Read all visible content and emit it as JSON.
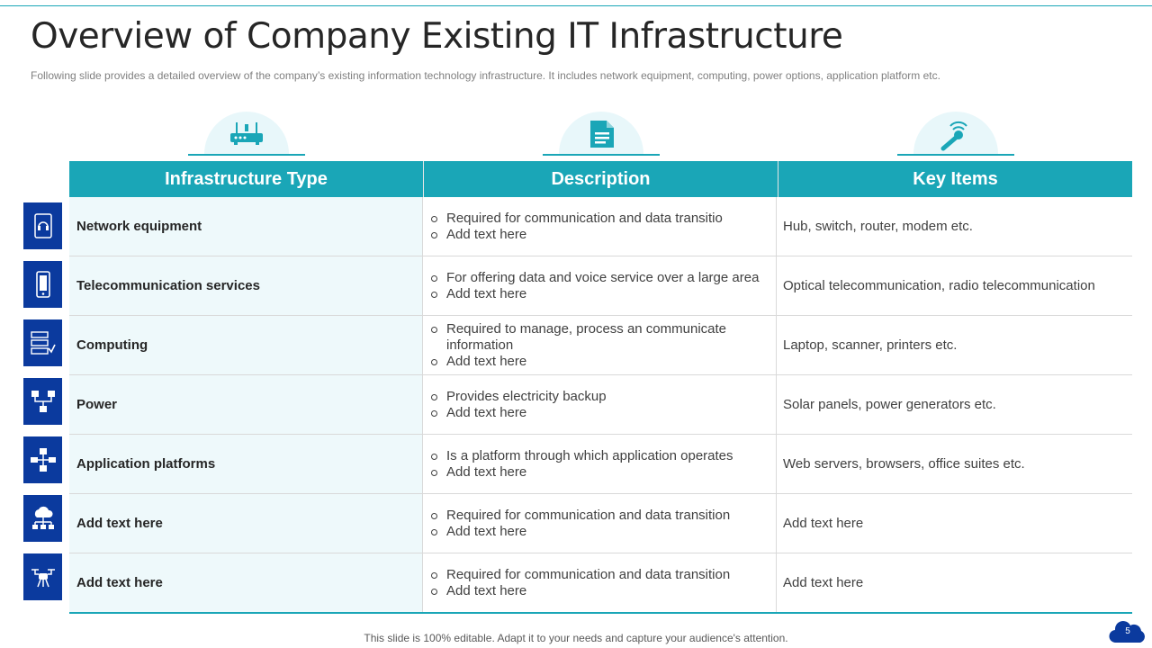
{
  "title": "Overview of Company Existing IT Infrastructure",
  "subtitle": "Following slide provides a detailed overview of the company’s existing information technology infrastructure. It includes network equipment, computing, power options, application platform etc.",
  "columns": {
    "type": "Infrastructure Type",
    "description": "Description",
    "key_items": "Key Items"
  },
  "column_icons": [
    "router-icon",
    "document-icon",
    "wireless-key-icon"
  ],
  "rows": [
    {
      "icon": "headset-icon",
      "type": "Network equipment",
      "desc": [
        "Required for communication and data transitio",
        "Add text here"
      ],
      "key": "Hub, switch, router, modem etc."
    },
    {
      "icon": "mobile-phone-icon",
      "type": "Telecommunication services",
      "desc": [
        "For offering data and voice service  over a large area",
        "Add text here"
      ],
      "key": "Optical telecommunication, radio telecommunication"
    },
    {
      "icon": "server-rack-icon",
      "type": "Computing",
      "desc": [
        "Required to manage, process an communicate information",
        "Add text here"
      ],
      "key": "Laptop, scanner, printers etc."
    },
    {
      "icon": "network-power-icon",
      "type": "Power",
      "desc": [
        "Provides electricity backup",
        "Add text here"
      ],
      "key": "Solar panels, power generators etc."
    },
    {
      "icon": "org-chart-icon",
      "type": "Application  platforms",
      "desc": [
        "Is a platform through which application operates",
        "Add text here"
      ],
      "key": "Web servers, browsers, office suites etc."
    },
    {
      "icon": "cloud-network-icon",
      "type": "Add  text here",
      "desc": [
        "Required for communication and data transition",
        "Add text here"
      ],
      "key": "Add text here"
    },
    {
      "icon": "drone-icon",
      "type": "Add  text here",
      "desc": [
        "Required for communication and data transition",
        "Add text here"
      ],
      "key": "Add text here"
    }
  ],
  "footer": "This slide is 100% editable. Adapt it to your needs and capture your audience's attention.",
  "page_number": "5",
  "colors": {
    "accent": "#1aa6b7",
    "icon_bg": "#0b3a9e",
    "type_cell_bg": "#eef9fb"
  }
}
